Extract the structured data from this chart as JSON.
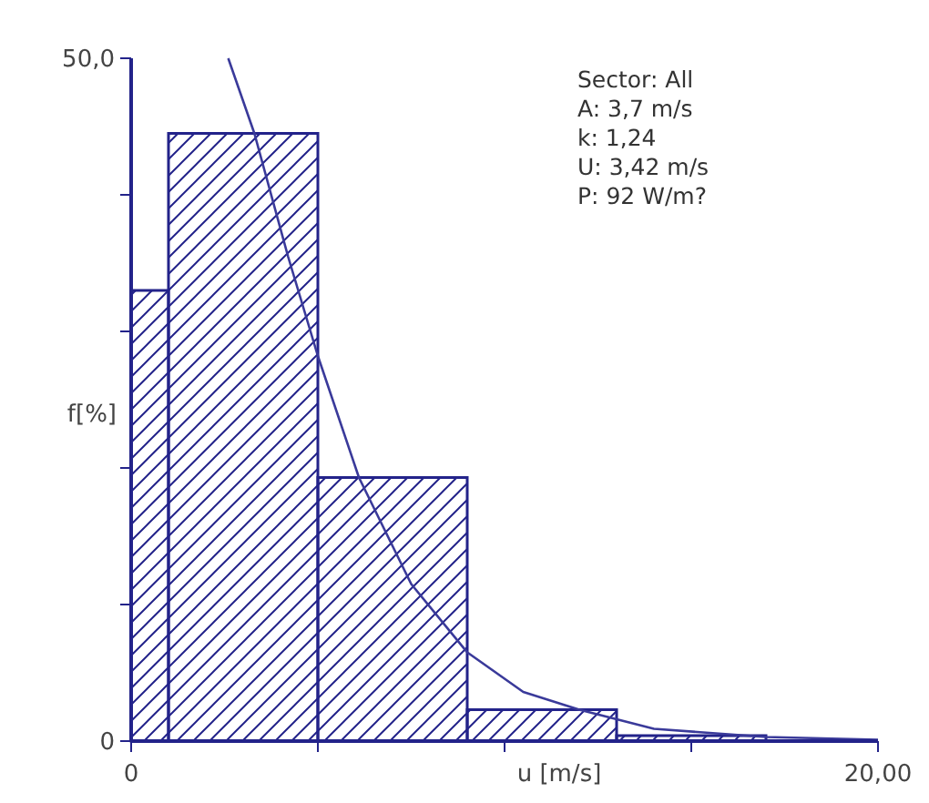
{
  "chart_data": {
    "type": "histogram",
    "xlabel": "u [m/s]",
    "ylabel": "f[%]",
    "bins": [
      0,
      1,
      5,
      9,
      13,
      17
    ],
    "values": [
      33.0,
      44.5,
      19.3,
      2.3,
      0.4
    ],
    "color": "#23238a",
    "series": [
      {
        "type": "line",
        "color": "#3a3a9a",
        "x": [
          2.6,
          3.3,
          4.2,
          5,
          6.1,
          7.5,
          9,
          10.5,
          12,
          14,
          17,
          20
        ],
        "values": [
          50,
          44.5,
          35.5,
          28.2,
          19.3,
          11.5,
          6.5,
          3.6,
          2.3,
          0.9,
          0.3,
          0.1
        ]
      }
    ],
    "xlim": [
      0,
      20
    ],
    "xticks": [
      {
        "value": 0,
        "label": "0"
      },
      {
        "value": 5,
        "label": null
      },
      {
        "value": 10,
        "label": null
      },
      {
        "value": 15,
        "label": null
      },
      {
        "value": 20,
        "label": "20,00"
      }
    ],
    "ylim": [
      0,
      50
    ],
    "yticks": [
      {
        "value": 0,
        "label": "0"
      },
      {
        "value": 10,
        "label": null
      },
      {
        "value": 20,
        "label": null
      },
      {
        "value": 30,
        "label": null
      },
      {
        "value": 40,
        "label": null
      },
      {
        "value": 50,
        "label": "50,0"
      }
    ],
    "annotations": [
      "Sector: All",
      "A: 3,7 m/s",
      "k: 1,24",
      "U: 3,42 m/s",
      "P: 92 W/m?"
    ]
  }
}
